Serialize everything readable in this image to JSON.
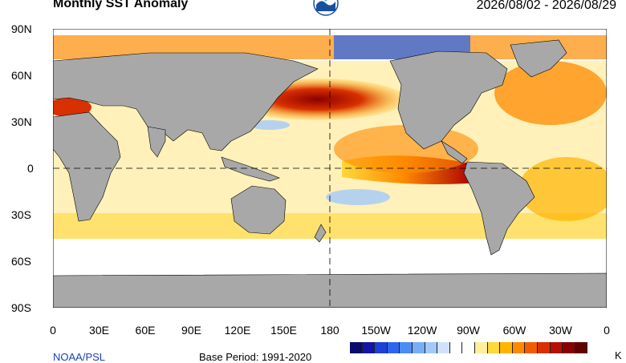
{
  "header": {
    "title": "Monthly SST Anomaly",
    "date_range": "2026/08/02 - 2026/08/29"
  },
  "logo": {
    "icon": "noaa-logo-icon"
  },
  "axes": {
    "y_ticks": [
      "90N",
      "60N",
      "30N",
      "0",
      "30S",
      "60S",
      "90S"
    ],
    "x_ticks": [
      "0",
      "30E",
      "60E",
      "90E",
      "120E",
      "150E",
      "180",
      "150W",
      "120W",
      "90W",
      "60W",
      "30W",
      "0"
    ]
  },
  "footer": {
    "source": "NOAA/PSL",
    "base_period": "Base Period: 1991-2020",
    "unit_marker": "K"
  },
  "colorbar": {
    "colors": [
      "#0b0b6b",
      "#1414a8",
      "#1e3fd8",
      "#2c66ee",
      "#4b8cf5",
      "#78aef8",
      "#a3c9fb",
      "#cfe2fd",
      "#ffffff",
      "#ffffff",
      "#ffef9a",
      "#ffd83a",
      "#ffb400",
      "#ff8a00",
      "#f25c00",
      "#d83000",
      "#b41000",
      "#8a0000",
      "#600000"
    ]
  },
  "map": {
    "land_color": "#a8a8a8",
    "ocean_base": "#ffffff",
    "equator_dashed": true,
    "dateline_dashed": true
  }
}
